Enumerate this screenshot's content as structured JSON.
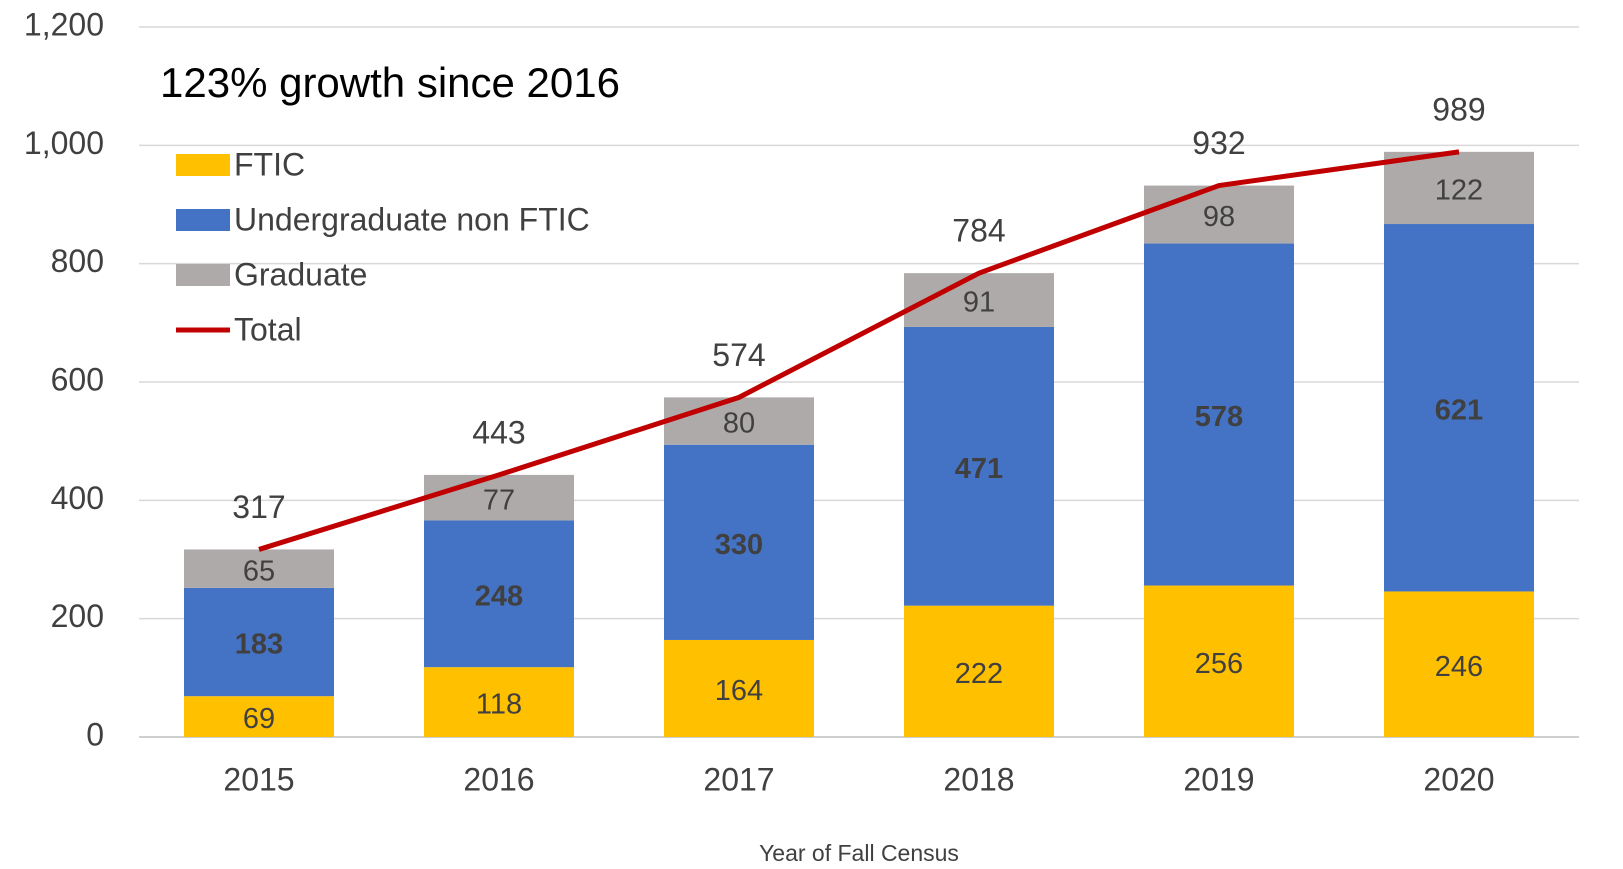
{
  "chart_data": {
    "type": "bar",
    "stacked": true,
    "annotation": "123% growth since 2016",
    "x_label": "Year of Fall Census",
    "categories": [
      "2015",
      "2016",
      "2017",
      "2018",
      "2019",
      "2020"
    ],
    "series": [
      {
        "name": "FTIC",
        "color": "#ffc000",
        "values": [
          69,
          118,
          164,
          222,
          256,
          246
        ]
      },
      {
        "name": "Undergraduate non FTIC",
        "color": "#4472c4",
        "values": [
          183,
          248,
          330,
          471,
          578,
          621
        ]
      },
      {
        "name": "Graduate",
        "color": "#aeaaaa",
        "values": [
          65,
          77,
          80,
          91,
          98,
          122
        ]
      },
      {
        "name": "Total",
        "color": "#c00000",
        "type": "line",
        "values": [
          317,
          443,
          574,
          784,
          932,
          989
        ]
      }
    ],
    "ylim": [
      0,
      1200
    ],
    "yticks": [
      0,
      200,
      400,
      600,
      800,
      {
        "value": 1000,
        "label": "1,000"
      },
      {
        "value": 1200,
        "label": "1,200"
      }
    ],
    "grid": true,
    "legend": "upper left"
  }
}
